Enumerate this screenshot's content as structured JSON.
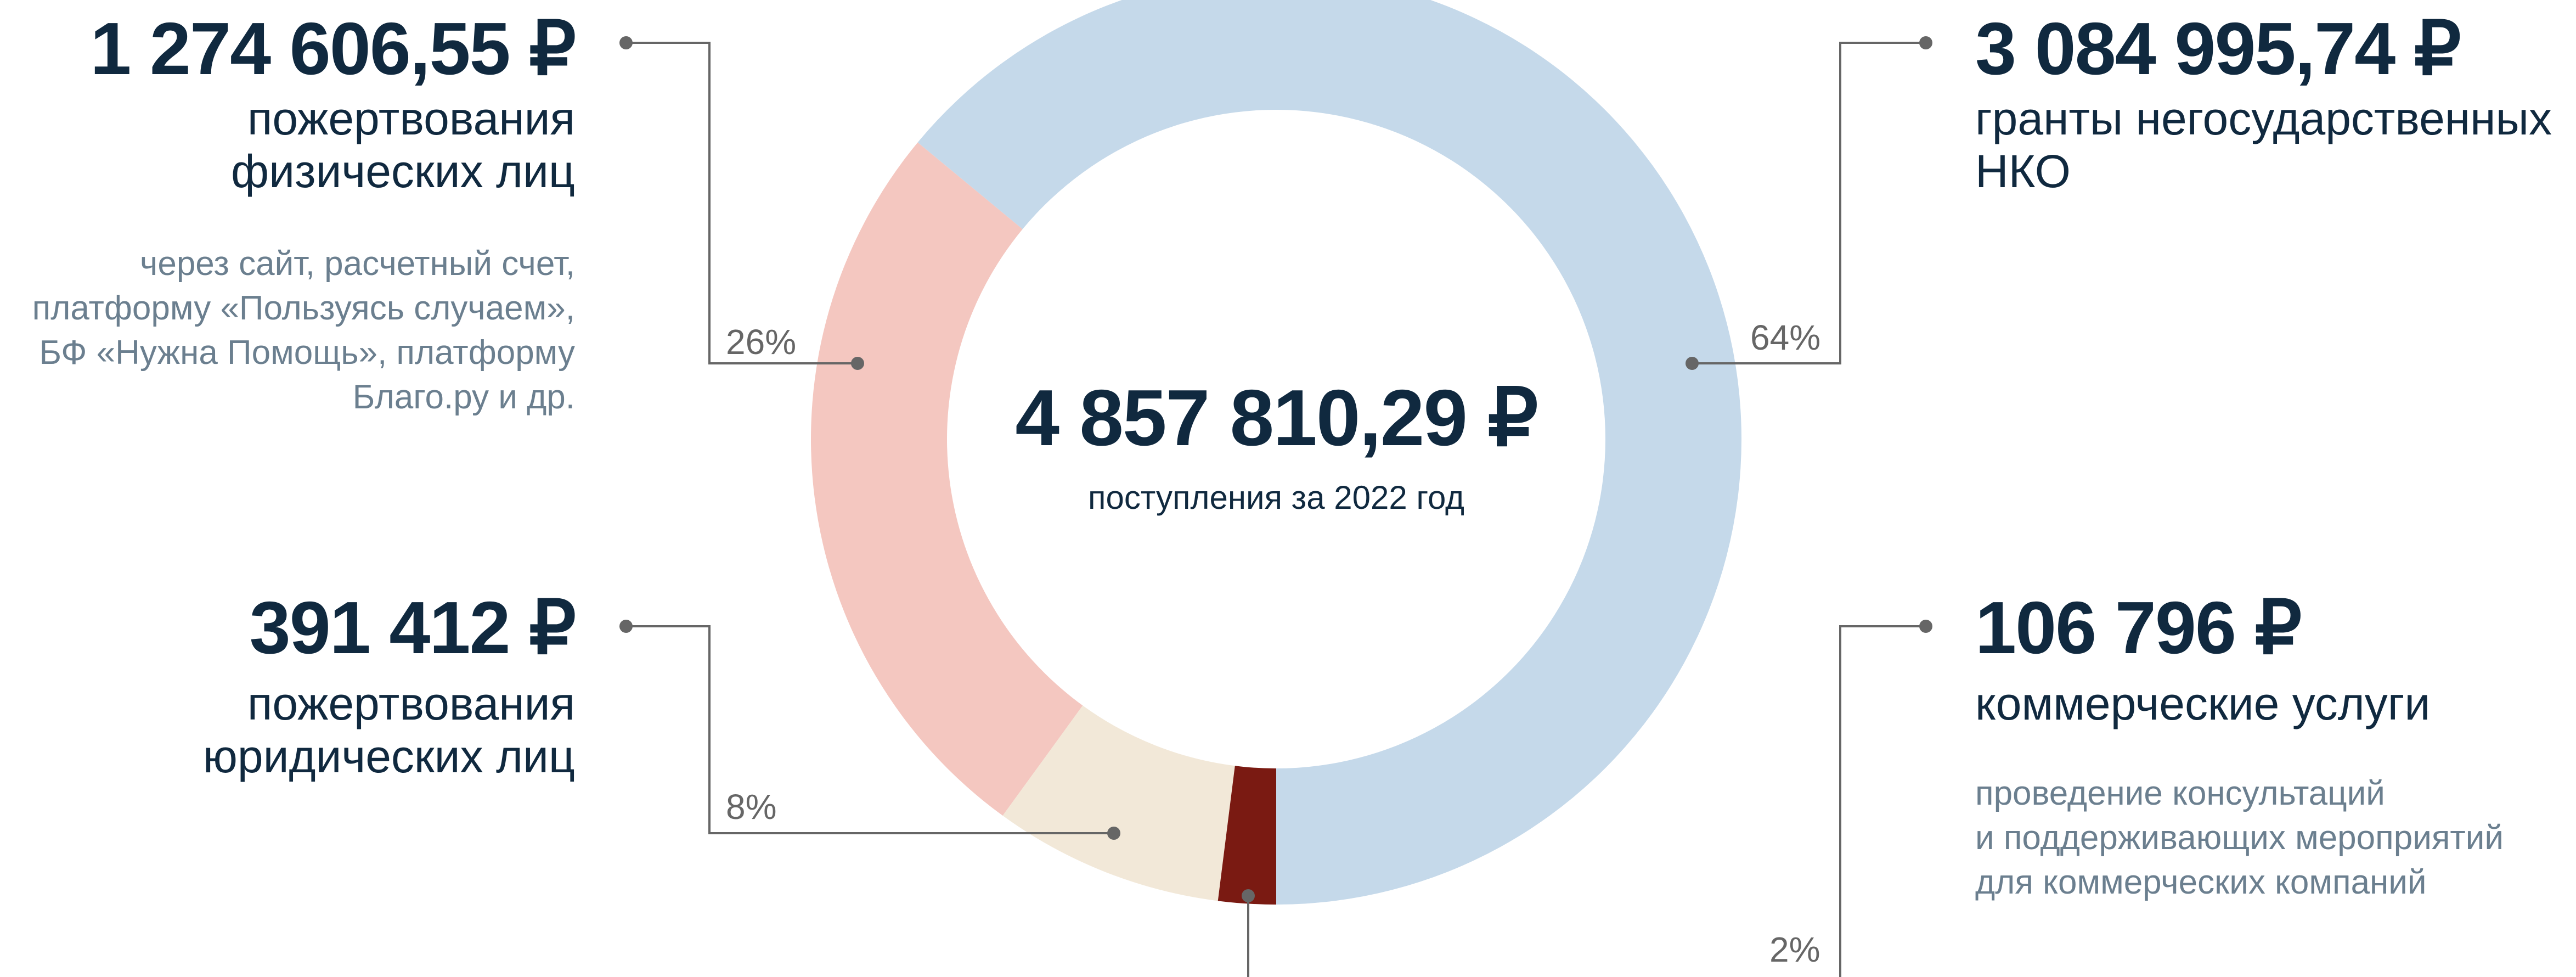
{
  "chart_data": {
    "type": "donut",
    "center_value": "4 857 810,29 ₽",
    "center_label": "поступления за 2022 год",
    "categories": [
      "гранты негосударственных\nНКО",
      "пожертвования\nфизических лиц",
      "пожертвования\nюридических лиц",
      "коммерческие услуги"
    ],
    "values": [
      64,
      26,
      8,
      2
    ],
    "value_labels": [
      "64%",
      "26%",
      "8%",
      "2%"
    ],
    "amounts": [
      "3 084 995,74 ₽",
      "1 274 606,55 ₽",
      "391 412 ₽",
      "106 796 ₽"
    ],
    "descriptions": [
      null,
      "через сайт, расчетный счет,\nплатформу «Пользуясь случаем»,\nБФ «Нужна Помощь», платформу\nБлаго.ру и др.",
      null,
      "проведение консультаций\nи поддерживающих мероприятий\nдля коммерческих компаний"
    ],
    "colors": [
      "#c5d9ea",
      "#f4c7c0",
      "#f2e8d8",
      "#7a1a12"
    ]
  }
}
